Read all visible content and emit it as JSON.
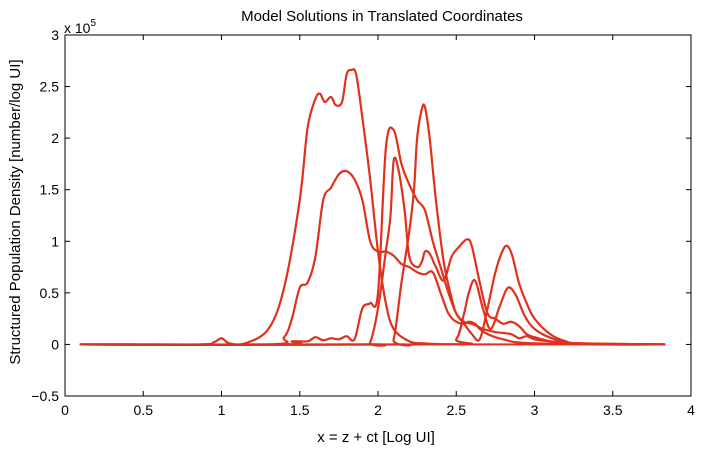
{
  "chart_data": {
    "type": "line",
    "title": "Model Solutions in Translated Coordinates",
    "xlabel": "x = z + ct [Log UI]",
    "ylabel": "Structured Population Density [number/log UI]",
    "y_exponent_label": {
      "prefix": "x 10",
      "power": "5"
    },
    "xlim": [
      0,
      4
    ],
    "ylim": [
      -0.5,
      3
    ],
    "x_ticks": [
      0,
      0.5,
      1,
      1.5,
      2,
      2.5,
      3,
      3.5,
      4
    ],
    "x_tick_labels": [
      "0",
      "0.5",
      "1",
      "1.5",
      "2",
      "2.5",
      "3",
      "3.5",
      "4"
    ],
    "y_ticks": [
      -0.5,
      0,
      0.5,
      1,
      1.5,
      2,
      2.5,
      3
    ],
    "y_tick_labels": [
      "−0.5",
      "0",
      "0.5",
      "1",
      "1.5",
      "2",
      "2.5",
      "3"
    ],
    "grid": false,
    "line_color": "#e0301e",
    "series": [
      {
        "x": [
          0.1,
          0.85,
          0.95,
          1.0,
          1.05,
          1.15,
          1.3,
          1.4,
          1.5,
          1.55,
          1.6,
          1.63,
          1.66,
          1.7,
          1.73,
          1.77,
          1.8,
          1.83,
          1.86,
          1.9,
          1.95,
          2.0,
          2.05,
          2.1,
          2.2,
          2.3,
          2.5,
          3.0,
          3.83
        ],
        "y": [
          0,
          0,
          0.02,
          0.06,
          0.01,
          0.01,
          0.15,
          0.55,
          1.4,
          2.1,
          2.38,
          2.43,
          2.35,
          2.4,
          2.32,
          2.35,
          2.62,
          2.66,
          2.62,
          2.2,
          1.6,
          0.9,
          0.4,
          0.15,
          0.03,
          0.01,
          0,
          0,
          0
        ]
      },
      {
        "x": [
          0.1,
          1.3,
          1.4,
          1.45,
          1.5,
          1.55,
          1.6,
          1.65,
          1.7,
          1.75,
          1.8,
          1.85,
          1.9,
          1.95,
          2.0,
          2.05,
          2.1,
          2.15,
          2.2,
          2.25,
          2.3,
          2.35,
          2.4,
          2.45,
          2.5,
          2.55,
          2.58,
          2.62,
          2.65,
          2.7,
          2.8,
          3.0,
          3.83
        ],
        "y": [
          0,
          0,
          0.07,
          0.25,
          0.55,
          0.6,
          0.85,
          1.4,
          1.52,
          1.65,
          1.68,
          1.6,
          1.4,
          1.0,
          0.9,
          0.9,
          0.86,
          0.78,
          0.75,
          0.7,
          0.68,
          0.7,
          0.5,
          0.3,
          0.22,
          0.2,
          0.22,
          0.2,
          0.15,
          0.1,
          0.05,
          0.01,
          0
        ]
      },
      {
        "x": [
          0.1,
          1.4,
          1.45,
          1.55,
          1.6,
          1.65,
          1.7,
          1.75,
          1.8,
          1.85,
          1.9,
          1.95,
          2.0,
          2.05,
          2.1,
          2.15,
          2.2,
          2.25,
          2.3,
          2.35,
          2.4,
          2.45,
          2.5,
          2.55,
          2.6,
          2.63,
          2.67,
          2.75,
          2.85,
          2.9,
          2.95,
          3.0,
          3.1,
          3.3,
          3.83
        ],
        "y": [
          0,
          0,
          0.03,
          0.03,
          0.07,
          0.04,
          0.06,
          0.05,
          0.08,
          0.05,
          0.35,
          0.4,
          0.5,
          1.9,
          2.08,
          1.75,
          1.55,
          1.4,
          1.3,
          1.0,
          0.75,
          0.5,
          0.3,
          0.22,
          0.2,
          0.18,
          0.15,
          0.12,
          0.1,
          0.06,
          0.08,
          0.05,
          0.03,
          0.01,
          0
        ]
      },
      {
        "x": [
          0.1,
          1.9,
          1.95,
          2.0,
          2.05,
          2.08,
          2.1,
          2.13,
          2.17,
          2.2,
          2.25,
          2.28,
          2.3,
          2.33,
          2.37,
          2.42,
          2.47,
          2.52,
          2.57,
          2.6,
          2.65,
          2.7,
          2.75,
          2.8,
          2.85,
          2.9,
          2.95,
          3.0,
          3.1,
          3.2,
          3.3,
          3.83
        ],
        "y": [
          0,
          0,
          0.02,
          0.35,
          0.9,
          1.25,
          1.78,
          1.7,
          1.3,
          0.85,
          0.75,
          0.8,
          0.9,
          0.88,
          0.75,
          0.62,
          0.85,
          0.95,
          1.02,
          0.95,
          0.6,
          0.3,
          0.25,
          0.2,
          0.22,
          0.18,
          0.1,
          0.07,
          0.03,
          0.01,
          0,
          0
        ]
      },
      {
        "x": [
          0.1,
          2.05,
          2.1,
          2.15,
          2.2,
          2.23,
          2.25,
          2.28,
          2.3,
          2.33,
          2.37,
          2.42,
          2.47,
          2.5,
          2.55,
          2.6,
          2.65,
          2.7,
          2.75,
          2.8,
          2.83,
          2.86,
          2.9,
          2.95,
          3.0,
          3.1,
          3.2,
          3.3,
          3.83
        ],
        "y": [
          0,
          0,
          0.05,
          0.6,
          1.1,
          1.5,
          2.0,
          2.28,
          2.3,
          2.0,
          1.4,
          0.8,
          0.45,
          0.3,
          0.2,
          0.1,
          0.05,
          0.35,
          0.7,
          0.92,
          0.95,
          0.85,
          0.6,
          0.4,
          0.25,
          0.1,
          0.03,
          0.01,
          0
        ]
      },
      {
        "x": [
          0.1,
          2.4,
          2.5,
          2.55,
          2.58,
          2.62,
          2.67,
          2.72,
          2.78,
          2.83,
          2.88,
          2.93,
          2.98,
          3.05,
          3.15,
          3.25,
          3.35,
          3.83
        ],
        "y": [
          0,
          0,
          0.05,
          0.3,
          0.5,
          0.62,
          0.35,
          0.15,
          0.38,
          0.55,
          0.48,
          0.3,
          0.18,
          0.1,
          0.04,
          0.01,
          0,
          0
        ]
      }
    ]
  }
}
